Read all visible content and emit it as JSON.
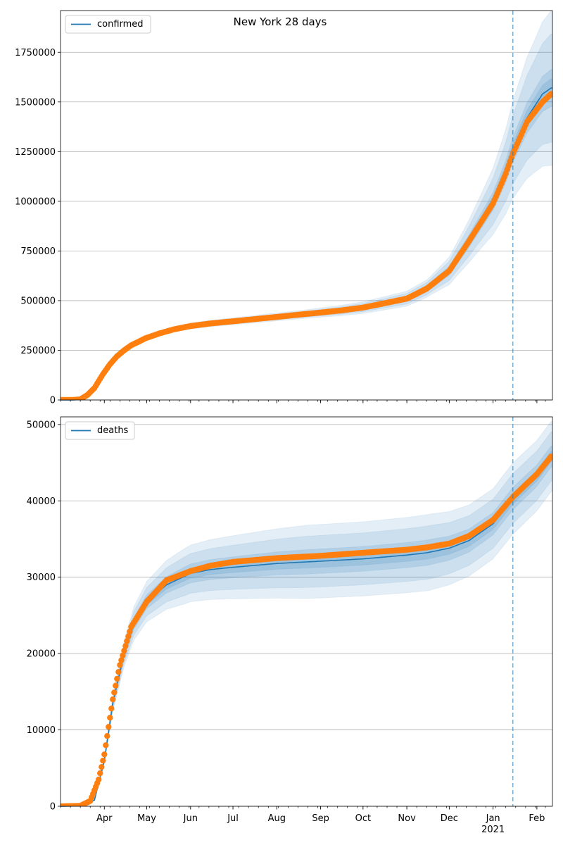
{
  "title": "New York 28 days",
  "colors": {
    "model": "#1f77b4",
    "observed": "#ff7f0e",
    "band": "#1f77b4",
    "grid": "#b0b0b0",
    "forecast_line": "#1f77b4"
  },
  "chart_data": [
    {
      "type": "line",
      "name": "confirmed",
      "ylim": [
        0,
        1960000
      ],
      "yticks": [
        0,
        250000,
        500000,
        750000,
        1000000,
        1250000,
        1500000,
        1750000
      ],
      "ytick_labels": [
        "0",
        "250000",
        "500000",
        "750000",
        "1000000",
        "1250000",
        "1500000",
        "1750000"
      ],
      "grid": "horizontal",
      "legend_position": "top-left",
      "forecast_start": "2021-01-15",
      "model_points": [
        [
          "2020-03-01",
          0
        ],
        [
          "2020-03-10",
          200
        ],
        [
          "2020-03-15",
          3000
        ],
        [
          "2020-03-20",
          25000
        ],
        [
          "2020-03-25",
          60000
        ],
        [
          "2020-03-31",
          130000
        ],
        [
          "2020-04-05",
          180000
        ],
        [
          "2020-04-10",
          220000
        ],
        [
          "2020-04-15",
          250000
        ],
        [
          "2020-04-20",
          275000
        ],
        [
          "2020-04-30",
          310000
        ],
        [
          "2020-05-10",
          335000
        ],
        [
          "2020-05-20",
          355000
        ],
        [
          "2020-06-01",
          372000
        ],
        [
          "2020-06-15",
          385000
        ],
        [
          "2020-07-01",
          396000
        ],
        [
          "2020-07-15",
          406000
        ],
        [
          "2020-08-01",
          418000
        ],
        [
          "2020-08-15",
          428000
        ],
        [
          "2020-09-01",
          440000
        ],
        [
          "2020-09-15",
          450000
        ],
        [
          "2020-10-01",
          465000
        ],
        [
          "2020-10-15",
          485000
        ],
        [
          "2020-11-01",
          510000
        ],
        [
          "2020-11-15",
          560000
        ],
        [
          "2020-12-01",
          650000
        ],
        [
          "2020-12-15",
          800000
        ],
        [
          "2021-01-01",
          1000000
        ],
        [
          "2021-01-10",
          1150000
        ],
        [
          "2021-01-15",
          1260000
        ],
        [
          "2021-01-25",
          1420000
        ],
        [
          "2021-02-05",
          1540000
        ],
        [
          "2021-02-11",
          1570000
        ]
      ],
      "observed_points": [
        [
          "2020-03-01",
          0
        ],
        [
          "2020-03-10",
          200
        ],
        [
          "2020-03-15",
          3000
        ],
        [
          "2020-03-20",
          25000
        ],
        [
          "2020-03-25",
          60000
        ],
        [
          "2020-03-31",
          130000
        ],
        [
          "2020-04-05",
          180000
        ],
        [
          "2020-04-10",
          220000
        ],
        [
          "2020-04-15",
          250000
        ],
        [
          "2020-04-20",
          275000
        ],
        [
          "2020-04-30",
          310000
        ],
        [
          "2020-05-10",
          335000
        ],
        [
          "2020-05-20",
          355000
        ],
        [
          "2020-06-01",
          372000
        ],
        [
          "2020-06-15",
          385000
        ],
        [
          "2020-07-01",
          396000
        ],
        [
          "2020-07-15",
          406000
        ],
        [
          "2020-08-01",
          418000
        ],
        [
          "2020-08-15",
          428000
        ],
        [
          "2020-09-01",
          440000
        ],
        [
          "2020-09-15",
          450000
        ],
        [
          "2020-10-01",
          465000
        ],
        [
          "2020-10-15",
          485000
        ],
        [
          "2020-11-01",
          510000
        ],
        [
          "2020-11-15",
          560000
        ],
        [
          "2020-12-01",
          650000
        ],
        [
          "2020-12-15",
          800000
        ],
        [
          "2021-01-01",
          990000
        ],
        [
          "2021-01-10",
          1140000
        ],
        [
          "2021-01-15",
          1240000
        ],
        [
          "2021-01-25",
          1400000
        ],
        [
          "2021-02-05",
          1500000
        ],
        [
          "2021-02-11",
          1540000
        ]
      ],
      "band_widths": {
        "inner": [
          0.01,
          0.02,
          0.02,
          0.03,
          0.06
        ],
        "outer": [
          0.02,
          0.04,
          0.05,
          0.08,
          0.25
        ]
      }
    },
    {
      "type": "line",
      "name": "deaths",
      "ylim": [
        0,
        51000
      ],
      "yticks": [
        0,
        10000,
        20000,
        30000,
        40000,
        50000
      ],
      "ytick_labels": [
        "0",
        "10000",
        "20000",
        "30000",
        "40000",
        "50000"
      ],
      "grid": "horizontal",
      "legend_position": "top-left",
      "forecast_start": "2021-01-15",
      "model_points": [
        [
          "2020-03-01",
          0
        ],
        [
          "2020-03-15",
          50
        ],
        [
          "2020-03-25",
          800
        ],
        [
          "2020-04-01",
          6000
        ],
        [
          "2020-04-07",
          13500
        ],
        [
          "2020-04-15",
          20000
        ],
        [
          "2020-04-22",
          24000
        ],
        [
          "2020-05-01",
          26800
        ],
        [
          "2020-05-15",
          29000
        ],
        [
          "2020-06-01",
          30500
        ],
        [
          "2020-06-15",
          31000
        ],
        [
          "2020-07-01",
          31300
        ],
        [
          "2020-08-01",
          31800
        ],
        [
          "2020-09-01",
          32100
        ],
        [
          "2020-10-01",
          32400
        ],
        [
          "2020-11-01",
          32900
        ],
        [
          "2020-11-15",
          33200
        ],
        [
          "2020-12-01",
          33800
        ],
        [
          "2020-12-15",
          34800
        ],
        [
          "2021-01-01",
          37000
        ],
        [
          "2021-01-15",
          40300
        ],
        [
          "2021-02-01",
          43300
        ],
        [
          "2021-02-11",
          45800
        ]
      ],
      "observed_points": [
        [
          "2020-03-01",
          0
        ],
        [
          "2020-03-15",
          50
        ],
        [
          "2020-03-22",
          700
        ],
        [
          "2020-03-28",
          3500
        ],
        [
          "2020-04-01",
          6800
        ],
        [
          "2020-04-07",
          14000
        ],
        [
          "2020-04-12",
          18500
        ],
        [
          "2020-04-20",
          23500
        ],
        [
          "2020-05-01",
          26800
        ],
        [
          "2020-05-15",
          29600
        ],
        [
          "2020-06-01",
          30800
        ],
        [
          "2020-06-15",
          31500
        ],
        [
          "2020-07-01",
          32000
        ],
        [
          "2020-08-01",
          32500
        ],
        [
          "2020-09-01",
          32800
        ],
        [
          "2020-10-01",
          33200
        ],
        [
          "2020-11-01",
          33600
        ],
        [
          "2020-11-15",
          33900
        ],
        [
          "2020-12-01",
          34400
        ],
        [
          "2020-12-15",
          35400
        ],
        [
          "2021-01-01",
          37500
        ],
        [
          "2021-01-15",
          40500
        ],
        [
          "2021-02-01",
          43500
        ],
        [
          "2021-02-11",
          45800
        ]
      ],
      "band_widths": {
        "inner": [
          0.02,
          0.04,
          0.05,
          0.05,
          0.03
        ],
        "outer": [
          0.05,
          0.12,
          0.15,
          0.15,
          0.1
        ]
      }
    }
  ],
  "x_axis": {
    "start": "2020-03-01",
    "end": "2021-02-12",
    "month_ticks": [
      {
        "date": "2020-04-01",
        "label": "Apr"
      },
      {
        "date": "2020-05-01",
        "label": "May"
      },
      {
        "date": "2020-06-01",
        "label": "Jun"
      },
      {
        "date": "2020-07-01",
        "label": "Jul"
      },
      {
        "date": "2020-08-01",
        "label": "Aug"
      },
      {
        "date": "2020-09-01",
        "label": "Sep"
      },
      {
        "date": "2020-10-01",
        "label": "Oct"
      },
      {
        "date": "2020-11-01",
        "label": "Nov"
      },
      {
        "date": "2020-12-01",
        "label": "Dec"
      },
      {
        "date": "2021-01-01",
        "label": "Jan"
      },
      {
        "date": "2021-02-01",
        "label": "Feb"
      }
    ],
    "year_label": "2021"
  }
}
